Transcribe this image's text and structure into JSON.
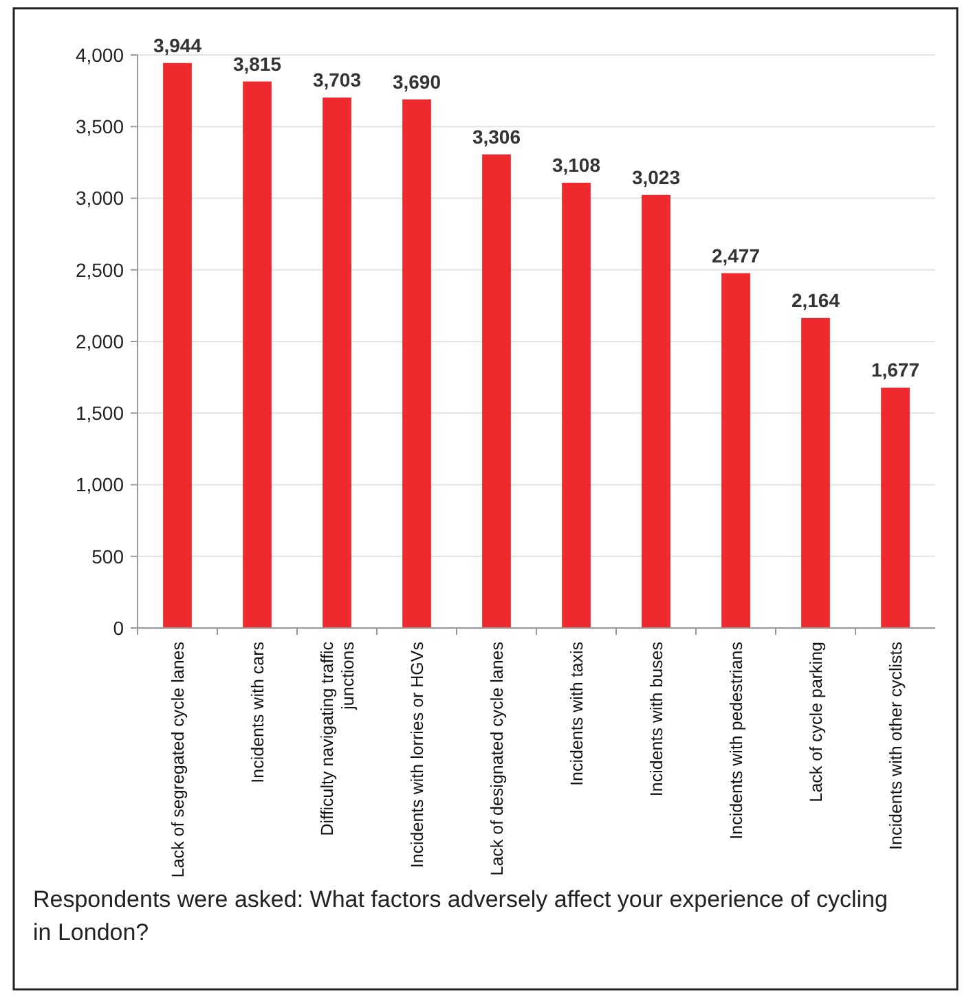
{
  "chart_data": {
    "type": "bar",
    "categories": [
      "Lack of segregated cycle lanes",
      "Incidents with cars",
      "Difficulty navigating traffic junctions",
      "Incidents with lorries or HGVs",
      "Lack of designated cycle lanes",
      "Incidents with taxis",
      "Incidents with buses",
      "Incidents with pedestrians",
      "Lack of cycle parking",
      "Incidents with other cyclists"
    ],
    "values": [
      3944,
      3815,
      3703,
      3690,
      3306,
      3108,
      3023,
      2477,
      2164,
      1677
    ],
    "value_labels": [
      "3,944",
      "3,815",
      "3,703",
      "3,690",
      "3,306",
      "3,108",
      "3,023",
      "2,477",
      "2,164",
      "1,677"
    ],
    "color": "#ee2a2f",
    "ylim": [
      0,
      4000
    ],
    "yticks": [
      {
        "value": 0,
        "label": "0"
      },
      {
        "value": 500,
        "label": "500"
      },
      {
        "value": 1000,
        "label": "1,000"
      },
      {
        "value": 1500,
        "label": "1,500"
      },
      {
        "value": 2000,
        "label": "2,000"
      },
      {
        "value": 2500,
        "label": "2,500"
      },
      {
        "value": 3000,
        "label": "3,000"
      },
      {
        "value": 3500,
        "label": "3,500"
      },
      {
        "value": 4000,
        "label": "4,000"
      }
    ],
    "grid": "y",
    "annotations": [
      "Respondents were asked: What factors adversely affect your experience of cycling in London?"
    ]
  }
}
